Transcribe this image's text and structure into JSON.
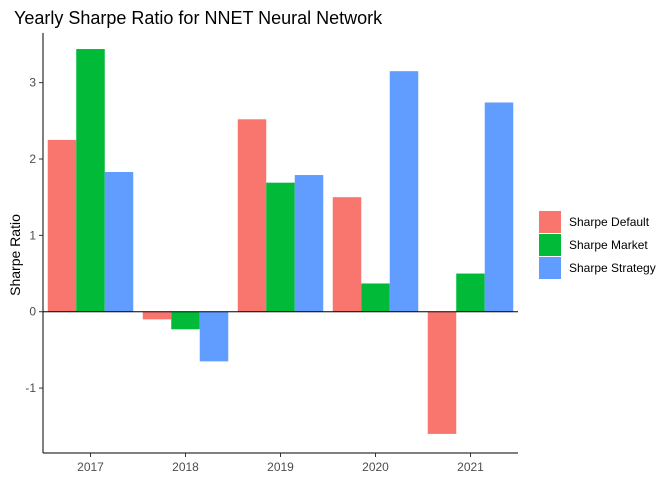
{
  "chart_data": {
    "type": "bar",
    "title": "Yearly Sharpe Ratio for NNET Neural Network",
    "xlabel": "",
    "ylabel": "Sharpe Ratio",
    "categories": [
      "2017",
      "2018",
      "2019",
      "2020",
      "2021"
    ],
    "series": [
      {
        "name": "Sharpe Default",
        "color": "#F8766D",
        "values": [
          2.25,
          -0.1,
          2.52,
          1.5,
          -1.6
        ]
      },
      {
        "name": "Sharpe Market",
        "color": "#00BA38",
        "values": [
          3.44,
          -0.23,
          1.69,
          0.37,
          0.5
        ]
      },
      {
        "name": "Sharpe Strategy",
        "color": "#619CFF",
        "values": [
          1.83,
          -0.65,
          1.79,
          3.15,
          2.74
        ]
      }
    ],
    "yticks": [
      -1,
      0,
      1,
      2,
      3
    ],
    "ylim": [
      -1.85,
      3.65
    ],
    "grid": false,
    "zero_line": true,
    "legend_position": "right"
  }
}
